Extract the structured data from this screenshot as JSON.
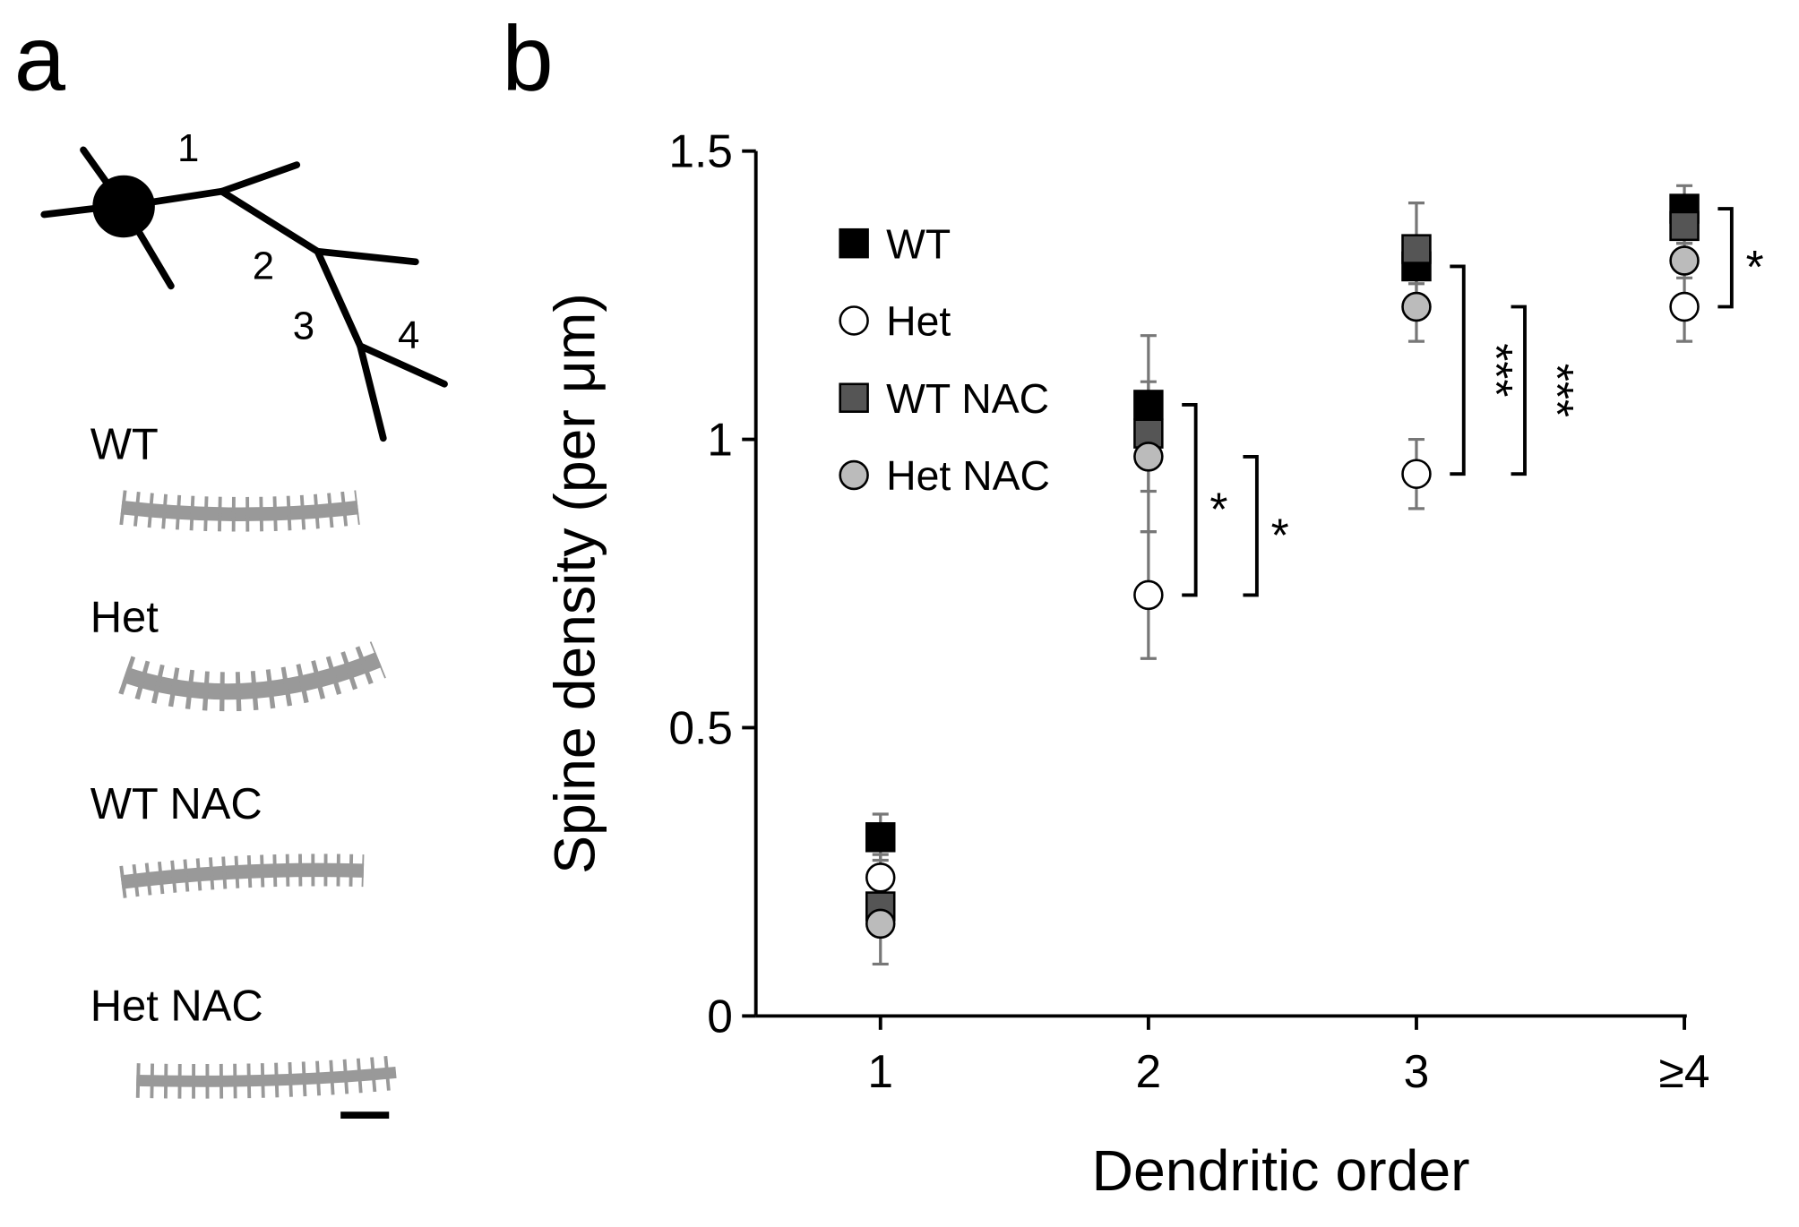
{
  "panel_a": {
    "letter": "a",
    "branch_labels": [
      "1",
      "2",
      "3",
      "4"
    ],
    "labels": [
      "WT",
      "Het",
      "WT NAC",
      "Het NAC"
    ]
  },
  "chart_data": {
    "type": "scatter",
    "letter": "b",
    "x_label": "Dendritic order",
    "y_label": "Spine density (per μm)",
    "categories": [
      "1",
      "2",
      "3",
      "≥4"
    ],
    "ylim": [
      0,
      1.5
    ],
    "yticks": [
      0,
      0.5,
      1,
      1.5
    ],
    "series": [
      {
        "name": "WT",
        "color": "#000000",
        "marker": "square",
        "values": [
          0.31,
          1.06,
          1.3,
          1.4
        ],
        "errors": [
          0.04,
          0.04,
          0.03,
          0.04
        ]
      },
      {
        "name": "Het",
        "color": "#ffffff",
        "marker": "circle",
        "values": [
          0.24,
          0.73,
          0.94,
          1.23
        ],
        "errors": [
          0.04,
          0.11,
          0.06,
          0.06
        ]
      },
      {
        "name": "WT NAC",
        "color": "#555555",
        "marker": "square",
        "values": [
          0.19,
          1.01,
          1.33,
          1.37
        ],
        "errors": [
          0.03,
          0.17,
          0.08,
          0.03
        ]
      },
      {
        "name": "Het NAC",
        "color": "#bbbbbb",
        "marker": "circle",
        "values": [
          0.16,
          0.97,
          1.23,
          1.31
        ],
        "errors": [
          0.07,
          0.06,
          0.06,
          0.03
        ]
      }
    ],
    "annotations": [
      {
        "text": "*",
        "category": 1,
        "series": [
          0,
          1
        ]
      },
      {
        "text": "*",
        "category": 1,
        "series": [
          3,
          1
        ]
      },
      {
        "text": "***",
        "category": 2,
        "series": [
          0,
          1
        ]
      },
      {
        "text": "***",
        "category": 2,
        "series": [
          3,
          1
        ]
      },
      {
        "text": "*",
        "category": 3,
        "series": [
          0,
          1
        ]
      }
    ]
  }
}
